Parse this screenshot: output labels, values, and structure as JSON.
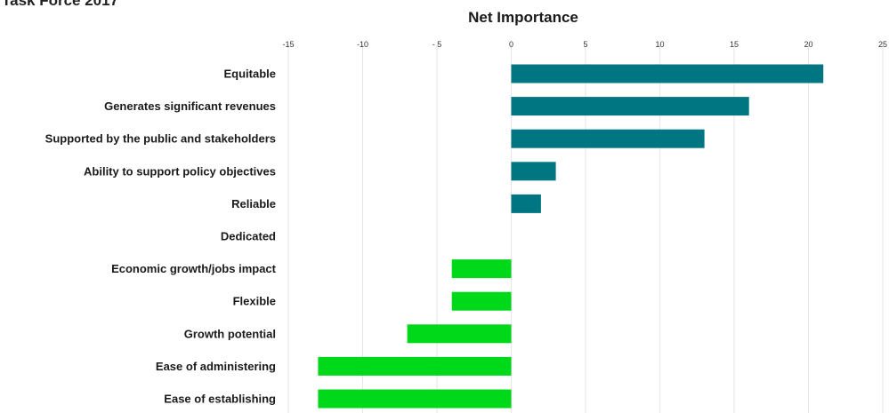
{
  "header": {
    "title": "Task Force 2017"
  },
  "chart_data": {
    "type": "bar",
    "orientation": "horizontal",
    "title": "Net Importance",
    "xlim": [
      -15,
      25
    ],
    "xticks": [
      -15,
      -10,
      -5,
      0,
      5,
      10,
      15,
      20,
      25
    ],
    "xtick_labels": [
      "-15",
      "-10",
      "- 5",
      "0",
      "5",
      "10",
      "15",
      "20",
      "25"
    ],
    "grid": true,
    "categories": [
      "Equitable",
      "Generates significant revenues",
      "Supported by the public and stakeholders",
      "Ability to support policy objectives",
      "Reliable",
      "Dedicated",
      "Economic growth/jobs impact",
      "Flexible",
      "Growth potential",
      "Ease of administering",
      "Ease of establishing"
    ],
    "values": [
      21,
      16,
      13,
      3,
      2,
      0,
      -4,
      -4,
      -7,
      -13,
      -13
    ],
    "colors": {
      "positive": "#007682",
      "negative": "#00d81a",
      "grid": "#e6e6e6",
      "text": "#1a1a1a"
    }
  }
}
